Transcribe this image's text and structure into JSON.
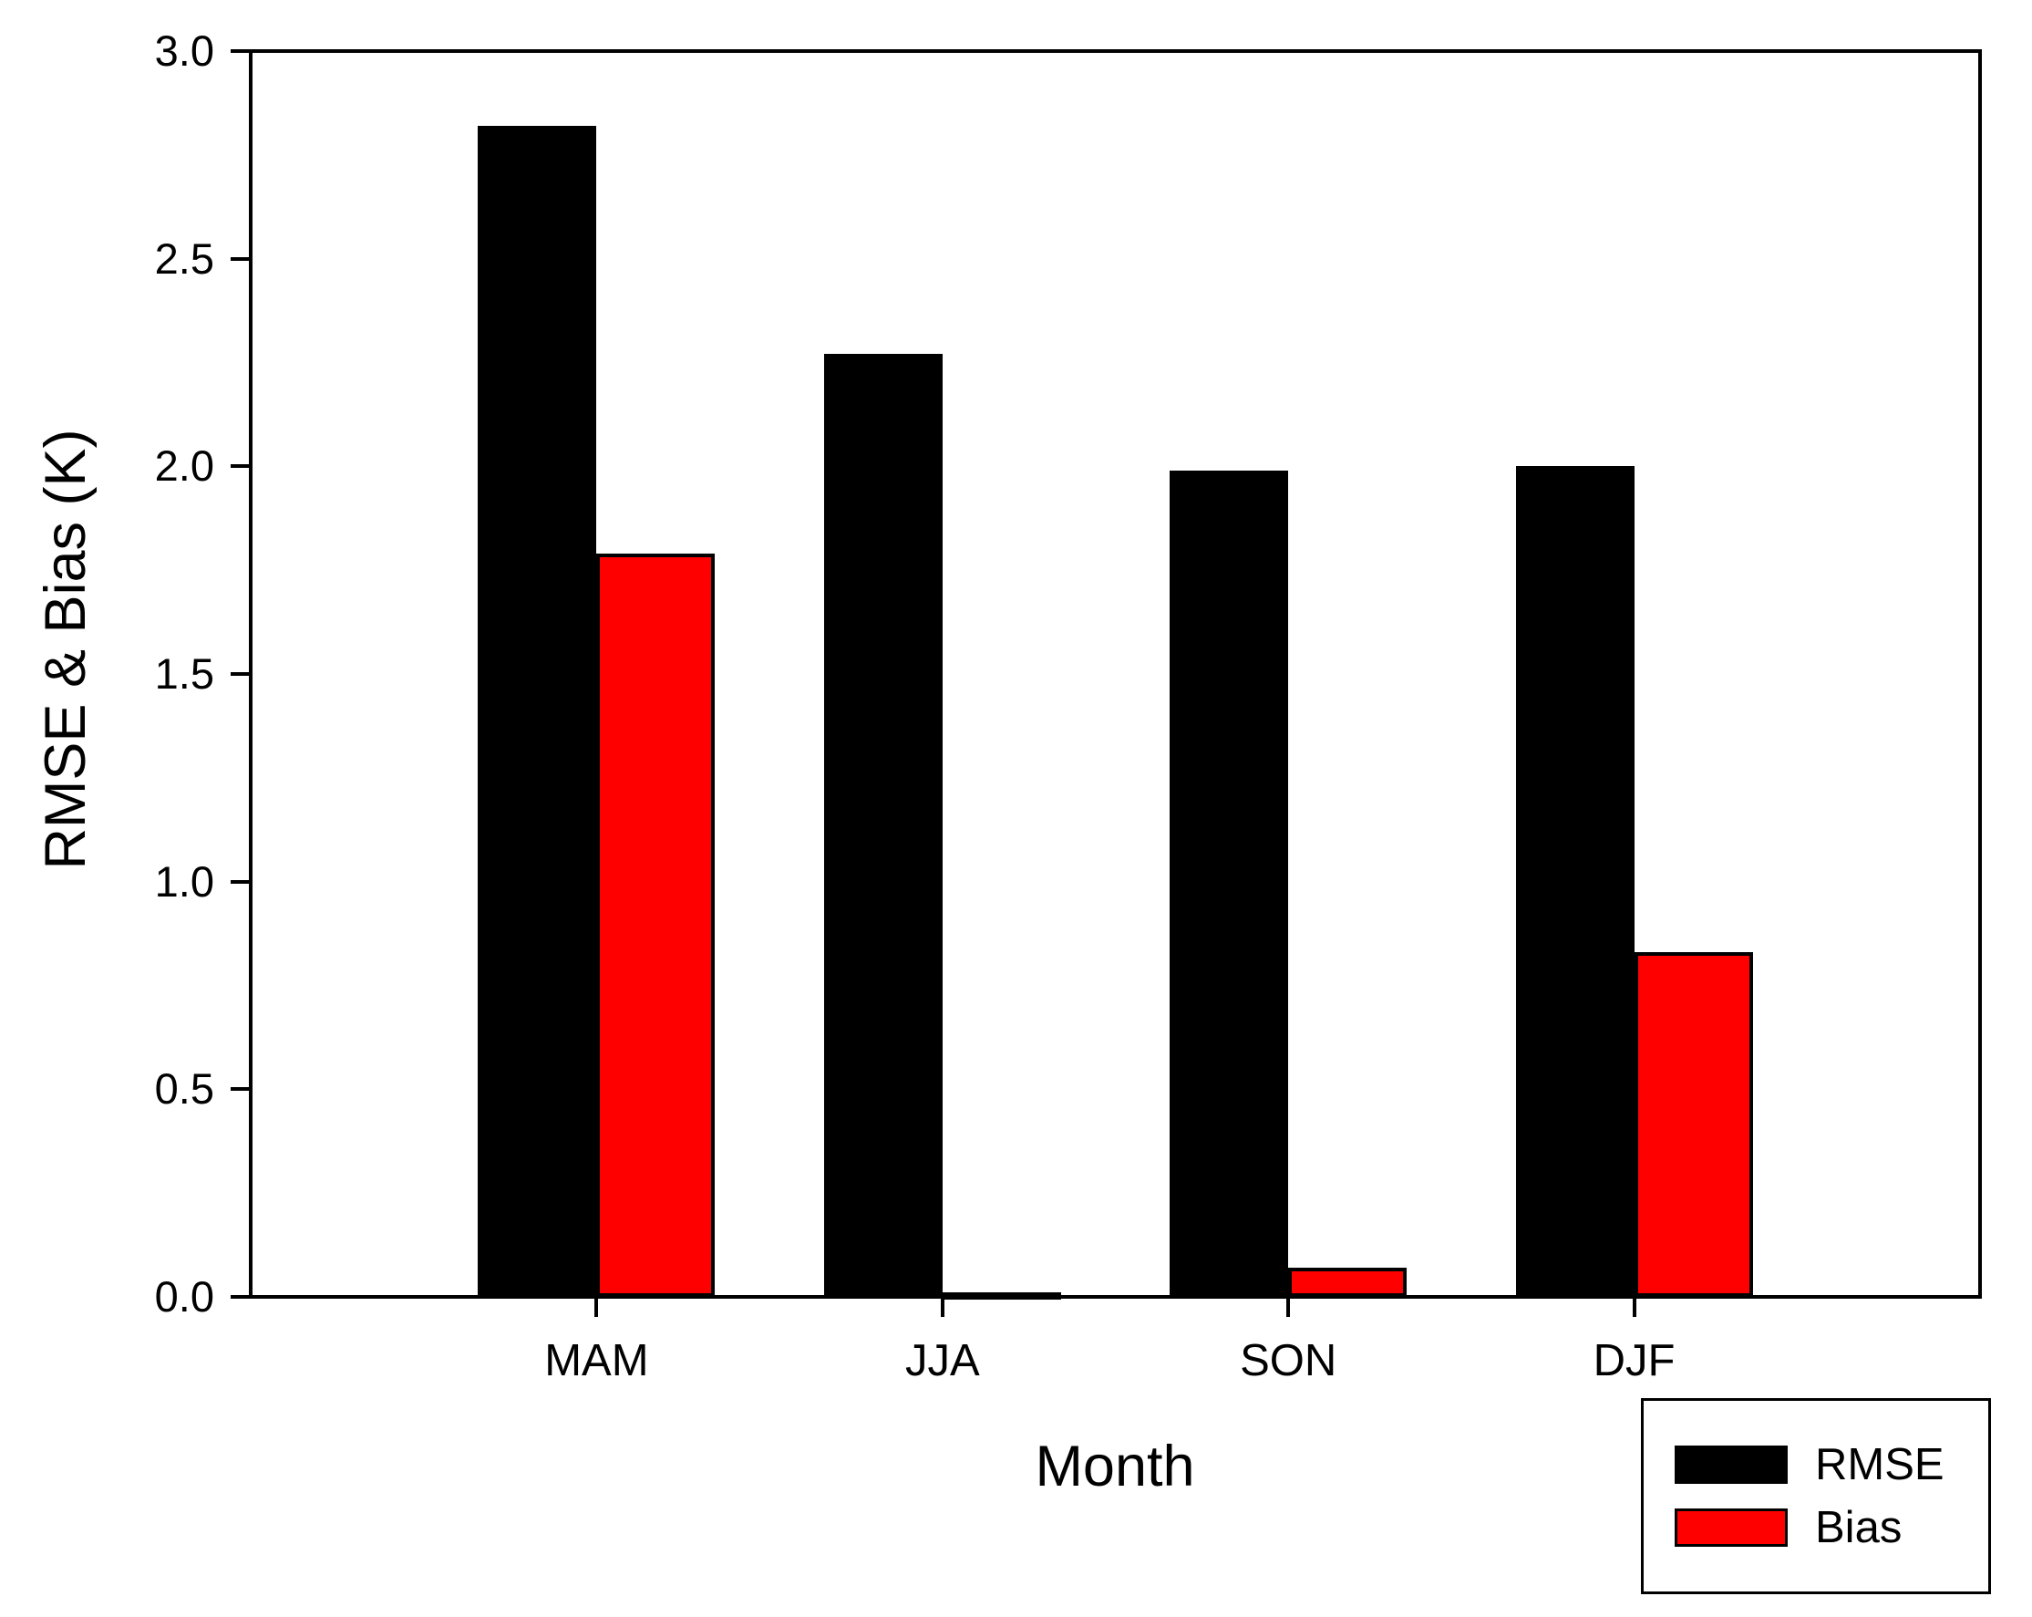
{
  "chart_data": {
    "type": "bar",
    "title": "",
    "categories": [
      "MAM",
      "JJA",
      "SON",
      "DJF"
    ],
    "series": [
      {
        "name": "RMSE",
        "color": "#000000",
        "values": [
          2.82,
          2.27,
          1.99,
          2.0
        ]
      },
      {
        "name": "Bias",
        "color": "#ff0000",
        "values": [
          1.79,
          0.01,
          0.07,
          0.83
        ]
      }
    ],
    "xlabel": "Month",
    "ylabel": "RMSE & Bias (K)",
    "ylim": [
      0.0,
      3.0
    ],
    "y_ticks": [
      0.0,
      0.5,
      1.0,
      1.5,
      2.0,
      2.5,
      3.0
    ],
    "y_tick_labels": [
      "0.0",
      "0.5",
      "1.0",
      "1.5",
      "2.0",
      "2.5",
      "3.0"
    ],
    "grid": false,
    "legend_position": "bottom-right",
    "bar_outline_color": "#000000",
    "background_color": "#ffffff"
  }
}
